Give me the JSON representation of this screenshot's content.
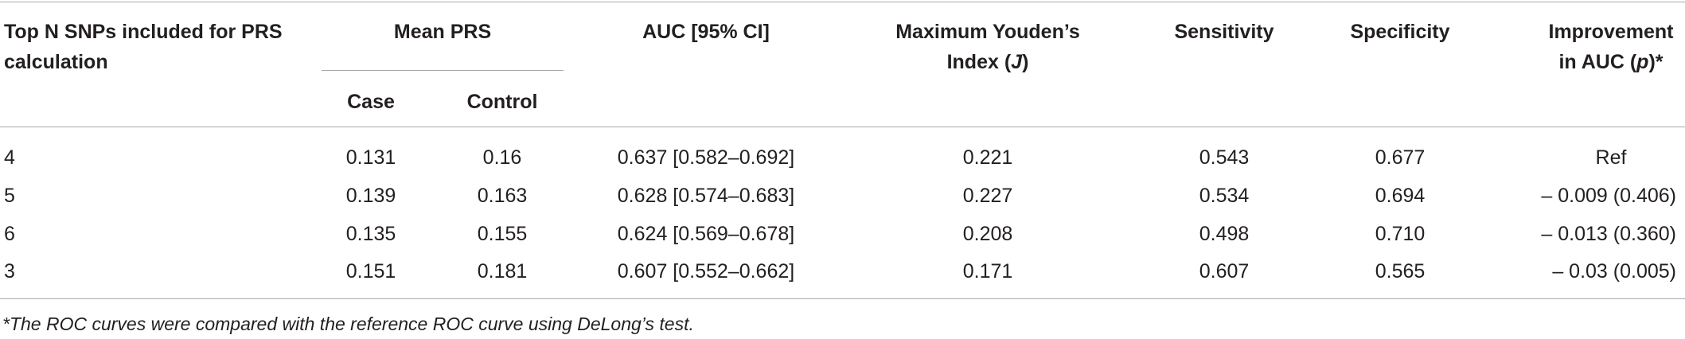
{
  "table": {
    "header": {
      "snps": "Top N SNPs included for PRS calculation",
      "mean_prs": "Mean PRS",
      "case": "Case",
      "control": "Control",
      "auc": "AUC [95% CI]",
      "youden": [
        "Maximum Youden’s Index (",
        "J",
        ")"
      ],
      "sensitivity": "Sensitivity",
      "specificity": "Specificity",
      "improvement": [
        "Improvement in AUC (",
        "p",
        ")*"
      ]
    },
    "rows": [
      [
        "4",
        "0.131",
        "0.16",
        "0.637 [0.582–0.692]",
        "0.221",
        "0.543",
        "0.677",
        "Ref"
      ],
      [
        "5",
        "0.139",
        "0.163",
        "0.628 [0.574–0.683]",
        "0.227",
        "0.534",
        "0.694",
        "– 0.009 (0.406)"
      ],
      [
        "6",
        "0.135",
        "0.155",
        "0.624 [0.569–0.678]",
        "0.208",
        "0.498",
        "0.710",
        "– 0.013 (0.360)"
      ],
      [
        "3",
        "0.151",
        "0.181",
        "0.607 [0.552–0.662]",
        "0.171",
        "0.607",
        "0.565",
        "– 0.03 (0.005)"
      ]
    ]
  },
  "footnote": "*The ROC curves were compared with the reference ROC curve using DeLong’s test."
}
